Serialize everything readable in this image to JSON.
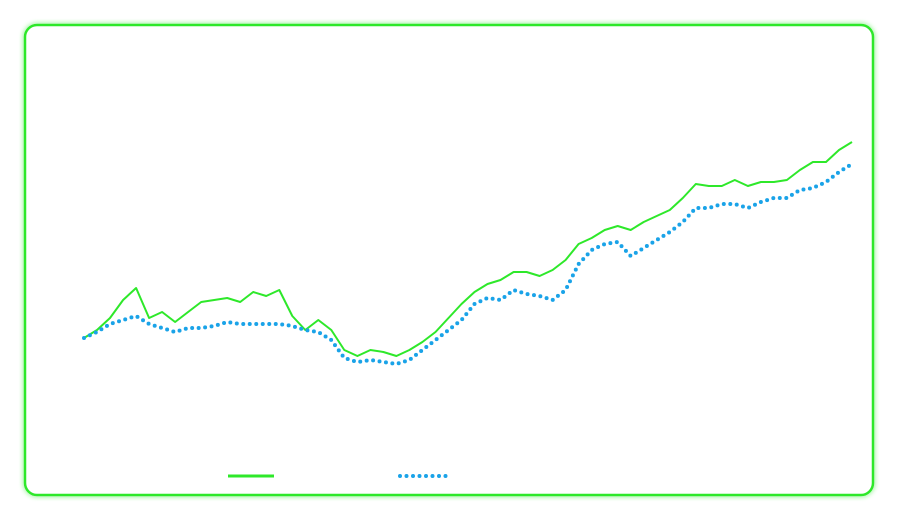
{
  "chart_data": {
    "type": "line",
    "ylim": [
      0,
      100
    ],
    "border_color": "#2ee82a",
    "series": [
      {
        "color": "#2ee82a",
        "style": "solid",
        "values": [
          30.5,
          32.5,
          35.5,
          40,
          43,
          35.5,
          37,
          34.5,
          37,
          39.5,
          40,
          40.5,
          39.5,
          42,
          41,
          42.5,
          36,
          32.5,
          35,
          32.5,
          27.5,
          26,
          27.5,
          27,
          26,
          27.5,
          29.5,
          32,
          35.5,
          39,
          42,
          44,
          45,
          47,
          47,
          46,
          47.5,
          50,
          54,
          55.5,
          57.5,
          58.5,
          57.5,
          59.5,
          61,
          62.5,
          65.5,
          69,
          68.5,
          68.5,
          70,
          68.5,
          69.5,
          69.5,
          70,
          72.5,
          74.5,
          74.5,
          77.5,
          79.5
        ]
      },
      {
        "color": "#1aa3e8",
        "style": "dotted",
        "values": [
          30.5,
          32,
          34,
          35,
          36,
          34,
          33,
          32,
          33,
          33,
          33.5,
          34.5,
          34,
          34,
          34,
          34,
          33.5,
          32.5,
          32,
          30,
          25.5,
          24.5,
          25,
          24.5,
          24,
          25,
          27.5,
          30,
          32.5,
          35,
          39,
          40.5,
          40,
          42.5,
          41.5,
          41,
          40,
          42.5,
          49,
          52.5,
          54,
          54.5,
          51,
          53,
          55,
          57,
          59.5,
          63,
          63,
          64,
          64,
          63,
          64.5,
          65.5,
          65.5,
          67.5,
          68,
          69.5,
          72,
          74
        ]
      }
    ]
  }
}
